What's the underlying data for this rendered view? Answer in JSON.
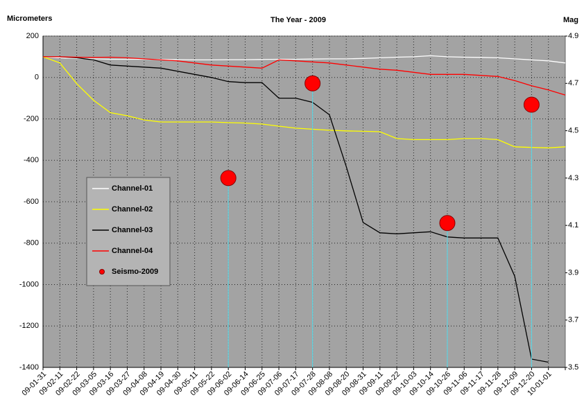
{
  "chart_data": {
    "type": "line",
    "title": "The Year - 2009",
    "y_label": "Micrometers",
    "y2_label": "Mag",
    "categories": [
      "09-01-31",
      "09-02-11",
      "09-02-22",
      "09-03-05",
      "09-03-16",
      "09-03-27",
      "09-04-08",
      "09-04-19",
      "09-04-30",
      "09-05-11",
      "09-05-22",
      "09-06-02",
      "09-06-14",
      "09-06-25",
      "09-07-06",
      "09-07-17",
      "09-07-28",
      "09-08-08",
      "09-08-20",
      "09-08-31",
      "09-09-11",
      "09-09-22",
      "09-10-03",
      "09-10-14",
      "09-10-26",
      "09-11-06",
      "09-11-17",
      "09-11-28",
      "09-12-09",
      "09-12-20",
      "10-01-01",
      null
    ],
    "ylim": [
      -1400,
      200
    ],
    "yticks": [
      -1400,
      -1200,
      -1000,
      -800,
      -600,
      -400,
      -200,
      0,
      200
    ],
    "y2lim": [
      3.5,
      4.9
    ],
    "y2ticks": [
      3.5,
      3.7,
      3.9,
      4.1,
      4.3,
      4.5,
      4.7,
      4.9
    ],
    "grid": true,
    "plot_background": "#a3a3a3",
    "legend_position": "left",
    "series": [
      {
        "name": "Channel-01",
        "color": "#ffffff",
        "values": [
          100,
          95,
          92,
          90,
          88,
          88,
          88,
          87,
          86,
          85,
          85,
          86,
          86,
          87,
          88,
          88,
          89,
          90,
          90,
          92,
          95,
          98,
          100,
          105,
          100,
          98,
          97,
          95,
          90,
          85,
          80,
          70
        ]
      },
      {
        "name": "Channel-02",
        "color": "#ffff00",
        "values": [
          100,
          70,
          -30,
          -110,
          -170,
          -185,
          -205,
          -215,
          -215,
          -215,
          -215,
          -218,
          -220,
          -225,
          -235,
          -245,
          -250,
          -255,
          -258,
          -260,
          -262,
          -295,
          -300,
          -300,
          -300,
          -295,
          -295,
          -300,
          -335,
          -338,
          -340,
          -335
        ]
      },
      {
        "name": "Channel-03",
        "color": "#000000",
        "values": [
          100,
          100,
          95,
          85,
          60,
          55,
          50,
          45,
          30,
          15,
          0,
          -20,
          -25,
          -25,
          -100,
          -100,
          -120,
          -180,
          -430,
          -700,
          -750,
          -755,
          -750,
          -745,
          -770,
          -775,
          -775,
          -775,
          -960,
          -1360,
          -1375,
          null
        ]
      },
      {
        "name": "Channel-04",
        "color": "#ff0000",
        "values": [
          100,
          100,
          98,
          97,
          98,
          95,
          90,
          85,
          80,
          70,
          60,
          55,
          50,
          45,
          85,
          80,
          75,
          70,
          60,
          50,
          40,
          35,
          25,
          15,
          15,
          15,
          10,
          5,
          -15,
          -40,
          -60,
          -85
        ]
      },
      {
        "name": "Seismo-2009",
        "color": "#ff0000",
        "type": "scatter",
        "axis": "y2",
        "drop_line_color": "#5fd3e0",
        "values": [
          null,
          null,
          null,
          null,
          null,
          null,
          null,
          null,
          null,
          null,
          null,
          4.3,
          null,
          null,
          null,
          null,
          4.7,
          null,
          null,
          null,
          null,
          null,
          null,
          null,
          4.11,
          null,
          null,
          null,
          null,
          4.61,
          null,
          null
        ]
      }
    ]
  }
}
